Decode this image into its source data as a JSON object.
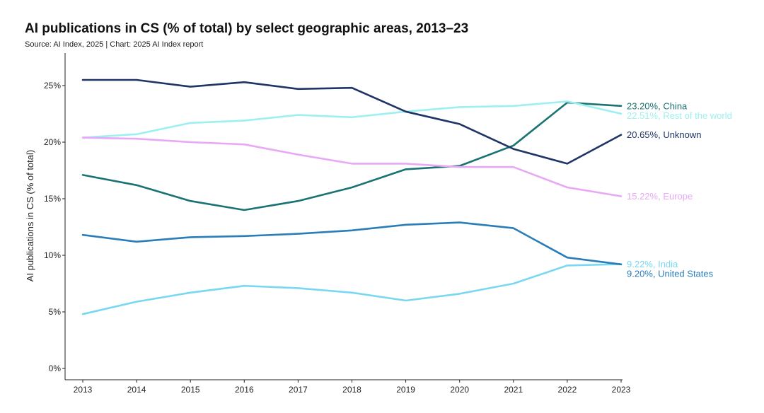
{
  "chart_data": {
    "type": "line",
    "title": "AI publications in CS (% of total) by select geographic areas, 2013–23",
    "subtitle": "Source: AI Index, 2025 | Chart: 2025 AI Index report",
    "xlabel": "",
    "ylabel": "AI publications in CS (% of total)",
    "x": [
      "2013",
      "2014",
      "2015",
      "2016",
      "2017",
      "2018",
      "2019",
      "2020",
      "2021",
      "2022",
      "2023"
    ],
    "ylim": [
      0,
      27.5
    ],
    "yticks": [
      "0%",
      "5%",
      "10%",
      "15%",
      "20%",
      "25%"
    ],
    "grid": false,
    "series": [
      {
        "name": "China",
        "label": "23.20%, China",
        "color": "#1a7373",
        "values": [
          17.1,
          16.2,
          14.8,
          14.0,
          14.8,
          16.0,
          17.6,
          17.9,
          19.7,
          23.5,
          23.2
        ]
      },
      {
        "name": "Rest of the world",
        "label": "22.51%, Rest of the world",
        "color": "#9ef0f0",
        "values": [
          20.4,
          20.7,
          21.7,
          21.9,
          22.4,
          22.2,
          22.7,
          23.1,
          23.2,
          23.6,
          22.51
        ]
      },
      {
        "name": "Unknown",
        "label": "20.65%, Unknown",
        "color": "#1f3566",
        "values": [
          25.5,
          25.5,
          24.9,
          25.3,
          24.7,
          24.8,
          22.7,
          21.6,
          19.4,
          18.1,
          20.65
        ]
      },
      {
        "name": "Europe",
        "label": "15.22%, Europe",
        "color": "#e8a8f5",
        "values": [
          20.4,
          20.3,
          20.0,
          19.8,
          18.9,
          18.1,
          18.1,
          17.8,
          17.8,
          16.0,
          15.22
        ]
      },
      {
        "name": "India",
        "label": "9.22%, India",
        "color": "#78d8f2",
        "values": [
          4.8,
          5.9,
          6.7,
          7.3,
          7.1,
          6.7,
          6.0,
          6.6,
          7.5,
          9.1,
          9.22
        ]
      },
      {
        "name": "United States",
        "label": "9.20%, United States",
        "color": "#2a7db8",
        "values": [
          11.8,
          11.2,
          11.6,
          11.7,
          11.9,
          12.2,
          12.7,
          12.9,
          12.4,
          9.8,
          9.2
        ]
      }
    ]
  }
}
